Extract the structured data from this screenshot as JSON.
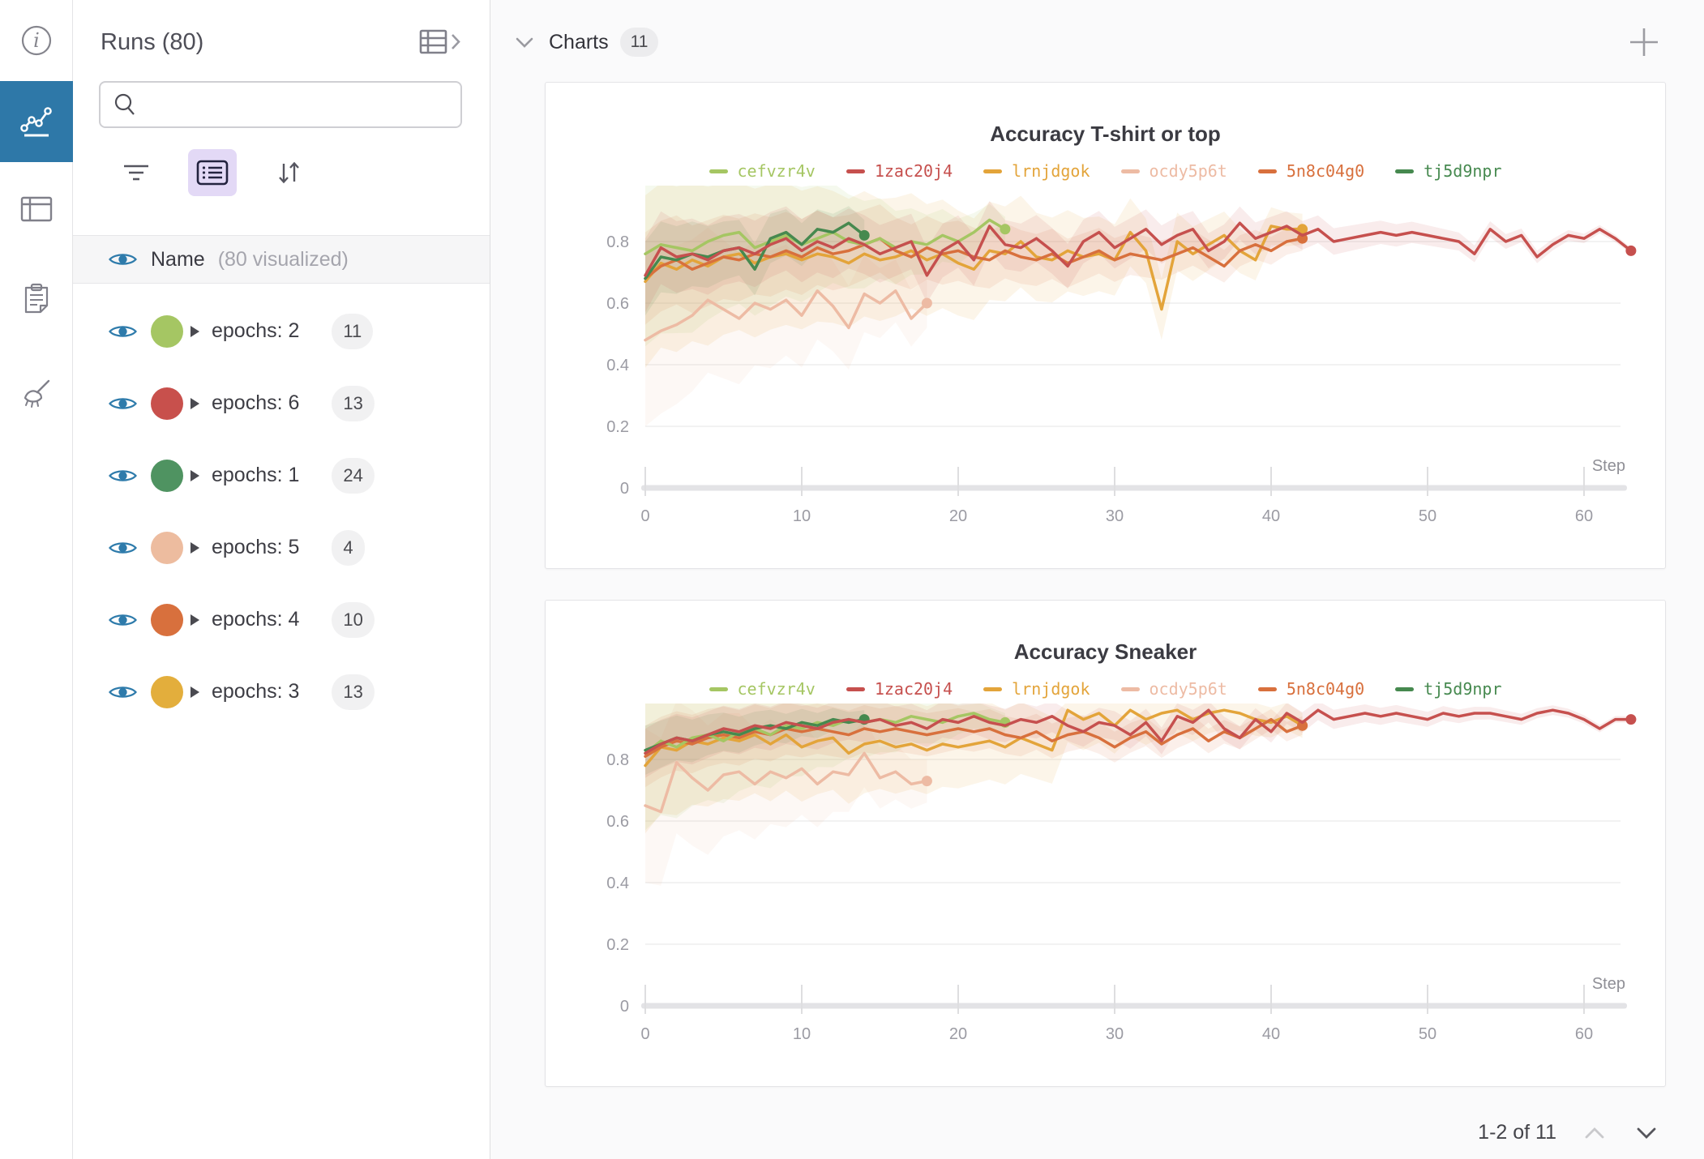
{
  "rail": {
    "accent_color": "#2e78a8",
    "items": [
      {
        "name": "info",
        "icon": "info-icon",
        "active": false
      },
      {
        "name": "charts",
        "icon": "line-chart-icon",
        "active": true
      },
      {
        "name": "table",
        "icon": "table-icon",
        "active": false
      },
      {
        "name": "notes",
        "icon": "clipboard-icon",
        "active": false
      },
      {
        "name": "sweep",
        "icon": "broom-icon",
        "active": false
      }
    ]
  },
  "sidebar": {
    "title": "Runs (80)",
    "search": {
      "value": "",
      "placeholder": ""
    },
    "header_row": {
      "label": "Name",
      "sublabel": "(80 visualized)"
    },
    "groups": [
      {
        "label": "epochs: 2",
        "count": "11",
        "color": "#a5c663"
      },
      {
        "label": "epochs: 6",
        "count": "13",
        "color": "#c8504c"
      },
      {
        "label": "epochs: 1",
        "count": "24",
        "color": "#4f9361"
      },
      {
        "label": "epochs: 5",
        "count": "4",
        "color": "#edbc9f"
      },
      {
        "label": "epochs: 4",
        "count": "10",
        "color": "#d8703d"
      },
      {
        "label": "epochs: 3",
        "count": "13",
        "color": "#e3ae3c"
      }
    ]
  },
  "main": {
    "section_title": "Charts",
    "section_count": "11",
    "pagination": {
      "text": "1-2 of 11"
    }
  },
  "chart_data": [
    {
      "type": "line",
      "title": "Accuracy T-shirt or top",
      "xlabel": "Step",
      "ylabel": "",
      "xlim": [
        0,
        63
      ],
      "ylim": [
        0,
        1
      ],
      "x_ticks": [
        0,
        10,
        20,
        30,
        40,
        50,
        60
      ],
      "y_ticks": [
        0,
        0.2,
        0.4,
        0.6,
        0.8
      ],
      "grid": true,
      "legend_position": "top",
      "series": [
        {
          "name": "cefvzr4v",
          "color": "#a5c663",
          "band": [
            0.3,
            0.04
          ],
          "y": [
            0.76,
            0.79,
            0.78,
            0.77,
            0.8,
            0.82,
            0.83,
            0.78,
            0.8,
            0.82,
            0.79,
            0.81,
            0.83,
            0.8,
            0.79,
            0.81,
            0.78,
            0.8,
            0.79,
            0.82,
            0.8,
            0.83,
            0.87,
            0.84
          ]
        },
        {
          "name": "1zac20j4",
          "color": "#c6504e",
          "band": [
            0.12,
            0.01
          ],
          "y": [
            0.69,
            0.78,
            0.75,
            0.76,
            0.74,
            0.77,
            0.78,
            0.76,
            0.79,
            0.81,
            0.77,
            0.8,
            0.78,
            0.81,
            0.79,
            0.76,
            0.78,
            0.8,
            0.69,
            0.77,
            0.8,
            0.74,
            0.85,
            0.79,
            0.78,
            0.81,
            0.77,
            0.72,
            0.8,
            0.83,
            0.78,
            0.81,
            0.84,
            0.79,
            0.82,
            0.84,
            0.77,
            0.8,
            0.86,
            0.81,
            0.83,
            0.85,
            0.82,
            0.84,
            0.8,
            0.81,
            0.82,
            0.83,
            0.82,
            0.83,
            0.82,
            0.81,
            0.8,
            0.76,
            0.84,
            0.8,
            0.82,
            0.75,
            0.79,
            0.82,
            0.81,
            0.84,
            0.81,
            0.77
          ]
        },
        {
          "name": "lrnjdgok",
          "color": "#e3a43a",
          "band": [
            0.28,
            0.05
          ],
          "y": [
            0.67,
            0.73,
            0.71,
            0.74,
            0.72,
            0.75,
            0.76,
            0.73,
            0.75,
            0.76,
            0.74,
            0.76,
            0.75,
            0.73,
            0.76,
            0.74,
            0.75,
            0.77,
            0.74,
            0.76,
            0.73,
            0.71,
            0.77,
            0.76,
            0.8,
            0.75,
            0.74,
            0.77,
            0.75,
            0.76,
            0.74,
            0.83,
            0.77,
            0.58,
            0.8,
            0.76,
            0.79,
            0.82,
            0.77,
            0.74,
            0.85,
            0.84,
            0.84
          ]
        },
        {
          "name": "ocdy5p6t",
          "color": "#edbba4",
          "band": [
            0.28,
            0.08
          ],
          "y": [
            0.48,
            0.51,
            0.53,
            0.56,
            0.61,
            0.58,
            0.55,
            0.6,
            0.58,
            0.61,
            0.56,
            0.64,
            0.59,
            0.52,
            0.63,
            0.6,
            0.64,
            0.55,
            0.6
          ]
        },
        {
          "name": "5n8c04g0",
          "color": "#d8703d",
          "band": [
            0.15,
            0.04
          ],
          "y": [
            0.68,
            0.72,
            0.74,
            0.71,
            0.73,
            0.75,
            0.74,
            0.76,
            0.75,
            0.77,
            0.75,
            0.78,
            0.76,
            0.77,
            0.79,
            0.81,
            0.77,
            0.75,
            0.78,
            0.76,
            0.77,
            0.75,
            0.74,
            0.77,
            0.75,
            0.74,
            0.76,
            0.73,
            0.75,
            0.77,
            0.74,
            0.76,
            0.75,
            0.74,
            0.76,
            0.78,
            0.75,
            0.72,
            0.77,
            0.79,
            0.77,
            0.8,
            0.81
          ]
        },
        {
          "name": "tj5d9npr",
          "color": "#46894f",
          "band": [
            0.12,
            0.05
          ],
          "y": [
            0.68,
            0.75,
            0.74,
            0.76,
            0.75,
            0.77,
            0.78,
            0.71,
            0.81,
            0.83,
            0.79,
            0.84,
            0.83,
            0.86,
            0.82
          ]
        }
      ]
    },
    {
      "type": "line",
      "title": "Accuracy Sneaker",
      "xlabel": "Step",
      "ylabel": "",
      "xlim": [
        0,
        63
      ],
      "ylim": [
        0,
        1
      ],
      "x_ticks": [
        0,
        10,
        20,
        30,
        40,
        50,
        60
      ],
      "y_ticks": [
        0,
        0.2,
        0.4,
        0.6,
        0.8
      ],
      "grid": true,
      "legend_position": "top",
      "series": [
        {
          "name": "cefvzr4v",
          "color": "#a5c663",
          "band": [
            0.25,
            0.03
          ],
          "y": [
            0.82,
            0.86,
            0.84,
            0.87,
            0.88,
            0.86,
            0.89,
            0.9,
            0.88,
            0.91,
            0.9,
            0.92,
            0.91,
            0.93,
            0.92,
            0.93,
            0.92,
            0.94,
            0.93,
            0.92,
            0.94,
            0.95,
            0.93,
            0.92
          ]
        },
        {
          "name": "1zac20j4",
          "color": "#c6504e",
          "band": [
            0.08,
            0.01
          ],
          "y": [
            0.82,
            0.85,
            0.87,
            0.86,
            0.88,
            0.9,
            0.89,
            0.91,
            0.9,
            0.92,
            0.91,
            0.9,
            0.92,
            0.93,
            0.92,
            0.93,
            0.91,
            0.92,
            0.9,
            0.93,
            0.92,
            0.94,
            0.92,
            0.91,
            0.93,
            0.92,
            0.94,
            0.91,
            0.89,
            0.92,
            0.91,
            0.88,
            0.92,
            0.86,
            0.94,
            0.92,
            0.96,
            0.9,
            0.87,
            0.93,
            0.89,
            0.95,
            0.92,
            0.96,
            0.93,
            0.94,
            0.95,
            0.94,
            0.95,
            0.94,
            0.93,
            0.95,
            0.94,
            0.95,
            0.95,
            0.94,
            0.93,
            0.95,
            0.96,
            0.95,
            0.93,
            0.9,
            0.93,
            0.93
          ]
        },
        {
          "name": "lrnjdgok",
          "color": "#e3a43a",
          "band": [
            0.22,
            0.04
          ],
          "y": [
            0.78,
            0.84,
            0.83,
            0.86,
            0.85,
            0.87,
            0.86,
            0.88,
            0.85,
            0.88,
            0.84,
            0.86,
            0.87,
            0.82,
            0.85,
            0.86,
            0.84,
            0.85,
            0.83,
            0.85,
            0.84,
            0.85,
            0.86,
            0.84,
            0.87,
            0.85,
            0.83,
            0.96,
            0.93,
            0.95,
            0.91,
            0.96,
            0.93,
            0.95,
            0.96,
            0.93,
            0.95,
            0.96,
            0.95,
            0.93,
            0.92,
            0.94,
            0.91
          ]
        },
        {
          "name": "ocdy5p6t",
          "color": "#edbba4",
          "band": [
            0.25,
            0.07
          ],
          "y": [
            0.65,
            0.63,
            0.79,
            0.74,
            0.7,
            0.75,
            0.76,
            0.72,
            0.76,
            0.74,
            0.77,
            0.72,
            0.76,
            0.75,
            0.82,
            0.74,
            0.76,
            0.72,
            0.73
          ]
        },
        {
          "name": "5n8c04g0",
          "color": "#d8703d",
          "band": [
            0.1,
            0.03
          ],
          "y": [
            0.81,
            0.84,
            0.86,
            0.85,
            0.87,
            0.88,
            0.87,
            0.89,
            0.88,
            0.9,
            0.89,
            0.9,
            0.89,
            0.88,
            0.9,
            0.89,
            0.9,
            0.89,
            0.88,
            0.89,
            0.9,
            0.89,
            0.9,
            0.88,
            0.87,
            0.89,
            0.86,
            0.88,
            0.89,
            0.87,
            0.84,
            0.87,
            0.89,
            0.85,
            0.88,
            0.9,
            0.86,
            0.89,
            0.87,
            0.9,
            0.93,
            0.89,
            0.91
          ]
        },
        {
          "name": "tj5d9npr",
          "color": "#46894f",
          "band": [
            0.08,
            0.03
          ],
          "y": [
            0.83,
            0.85,
            0.87,
            0.86,
            0.88,
            0.89,
            0.88,
            0.9,
            0.91,
            0.9,
            0.92,
            0.91,
            0.93,
            0.92,
            0.93
          ]
        }
      ]
    }
  ]
}
